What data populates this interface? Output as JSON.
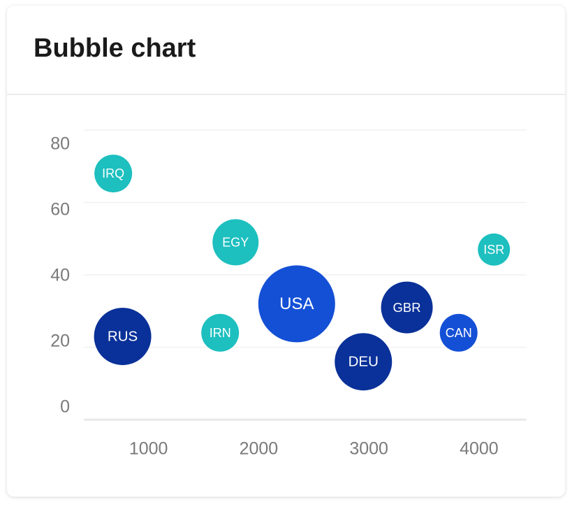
{
  "header": {
    "title": "Bubble chart"
  },
  "chart_data": {
    "type": "bubble",
    "xlim": [
      400,
      4400
    ],
    "xticks": [
      1000,
      2000,
      3000,
      4000
    ],
    "ylim": [
      0,
      80
    ],
    "yticks": [
      0,
      20,
      40,
      60,
      80
    ],
    "grid": true,
    "points": [
      {
        "label": "IRQ",
        "x": 680,
        "y": 68,
        "size": 27,
        "color": "#1dbfbf"
      },
      {
        "label": "RUS",
        "x": 765,
        "y": 23,
        "size": 41,
        "color": "#0a3199"
      },
      {
        "label": "EGY",
        "x": 1790,
        "y": 49,
        "size": 33,
        "color": "#1dbfbf"
      },
      {
        "label": "IRN",
        "x": 1650,
        "y": 24,
        "size": 27,
        "color": "#1dbfbf"
      },
      {
        "label": "USA",
        "x": 2345,
        "y": 32,
        "size": 55,
        "color": "#1450d6"
      },
      {
        "label": "DEU",
        "x": 2950,
        "y": 16,
        "size": 41,
        "color": "#0a3199"
      },
      {
        "label": "GBR",
        "x": 3345,
        "y": 31,
        "size": 37,
        "color": "#0a3199"
      },
      {
        "label": "CAN",
        "x": 3815,
        "y": 24,
        "size": 27,
        "color": "#1450d6"
      },
      {
        "label": "ISR",
        "x": 4135,
        "y": 47,
        "size": 23,
        "color": "#1dbfbf"
      }
    ]
  }
}
